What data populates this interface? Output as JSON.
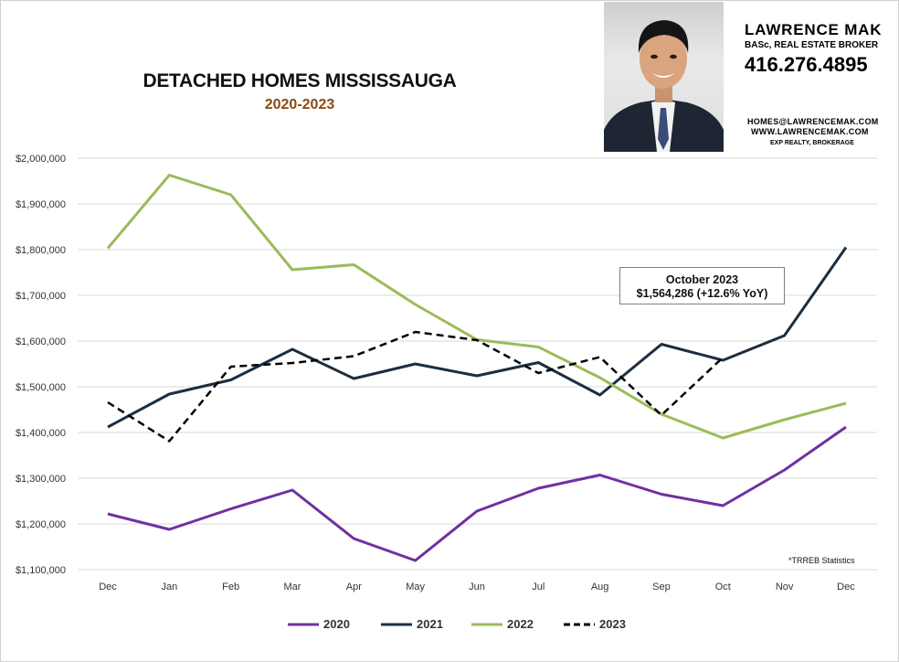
{
  "header": {
    "title": "DETACHED HOMES MISSISSAUGA",
    "subtitle": "2020-2023",
    "subtitle_color": "#8b4a0f"
  },
  "agent": {
    "name": "LAWRENCE MAK",
    "role": "BASc, REAL ESTATE BROKER",
    "phone": "416.276.4895",
    "email": "HOMES@LAWRENCEMAK.COM",
    "website": "WWW.LAWRENCEMAK.COM",
    "brokerage": "EXP REALTY, BROKERAGE"
  },
  "annotation": {
    "line1": "October 2023",
    "line2": "$1,564,286  (+12.6%  YoY)"
  },
  "source_note": "*TRREB Statistics",
  "chart_data": {
    "type": "line",
    "categories": [
      "Dec",
      "Jan",
      "Feb",
      "Mar",
      "Apr",
      "May",
      "Jun",
      "Jul",
      "Aug",
      "Sep",
      "Oct",
      "Nov",
      "Dec"
    ],
    "ylim": [
      1100000,
      2000000
    ],
    "yticks": [
      1100000,
      1200000,
      1300000,
      1400000,
      1500000,
      1600000,
      1700000,
      1800000,
      1900000,
      2000000
    ],
    "ytick_labels": [
      "$1,100,000",
      "$1,200,000",
      "$1,300,000",
      "$1,400,000",
      "$1,500,000",
      "$1,600,000",
      "$1,700,000",
      "$1,800,000",
      "$1,900,000",
      "$2,000,000"
    ],
    "grid": "horizontal",
    "legend": "bottom",
    "series": [
      {
        "name": "2020",
        "color": "#7030a0",
        "dashed": false,
        "values": [
          1222000,
          1188000,
          1233000,
          1274000,
          1168000,
          1120000,
          1228000,
          1278000,
          1307000,
          1265000,
          1240000,
          1318000,
          1412000
        ]
      },
      {
        "name": "2021",
        "color": "#1c2e40",
        "dashed": false,
        "values": [
          1412000,
          1484000,
          1515000,
          1582000,
          1518000,
          1550000,
          1524000,
          1553000,
          1482000,
          1593000,
          1558000,
          1612000,
          1805000
        ]
      },
      {
        "name": "2022",
        "color": "#9bbb59",
        "dashed": false,
        "values": [
          1803000,
          1963000,
          1920000,
          1756000,
          1767000,
          1680000,
          1603000,
          1587000,
          1520000,
          1440000,
          1388000,
          1428000,
          1464000
        ]
      },
      {
        "name": "2023",
        "color": "#000000",
        "dashed": true,
        "values": [
          1466000,
          1381000,
          1544000,
          1552000,
          1567000,
          1620000,
          1602000,
          1530000,
          1565000,
          1438000,
          1564286,
          null,
          null
        ]
      }
    ]
  }
}
